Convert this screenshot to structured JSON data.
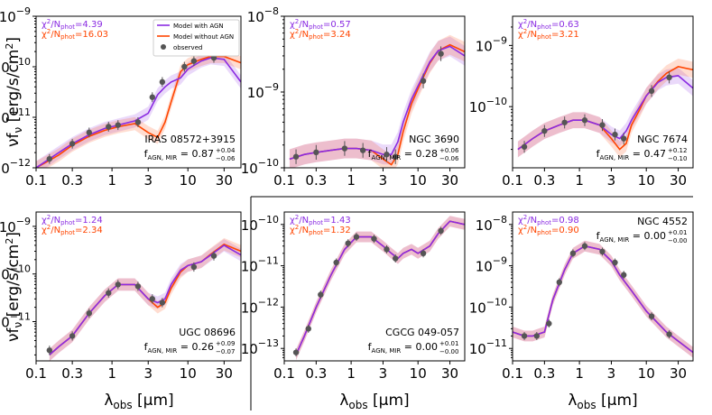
{
  "figure": {
    "ylabel_shared": "νf_ν [erg/s/cm²]",
    "xlabel_shared": "λ_obs [μm]"
  },
  "colors": {
    "agn": "#8a2be2",
    "noagn": "#ff4500",
    "observed": "#555555",
    "axis": "#000000"
  },
  "legend": {
    "entries": [
      {
        "label": "Model with AGN",
        "kind": "line",
        "color": "#8a2be2"
      },
      {
        "label": "Model without AGN",
        "kind": "line",
        "color": "#ff4500"
      },
      {
        "label": "observed",
        "kind": "marker",
        "color": "#555555"
      }
    ]
  },
  "chart_data": [
    {
      "type": "line",
      "name": "IRAS 08572+3915",
      "chi_agn": "χ²/N_phot=4.39",
      "chi_noagn": "χ²/N_phot=16.03",
      "fagn": "f_AGN,MIR = 0.87 +0.04 −0.06",
      "xscale": "log",
      "yscale": "log",
      "xlim": [
        0.1,
        50
      ],
      "ylim": [
        1e-12,
        1e-09
      ],
      "xticks": [
        "0.1",
        "0.3",
        "1",
        "3",
        "10",
        "30"
      ],
      "yticks": [
        "10^-12",
        "10^-11",
        "10^-10",
        "10^-9"
      ],
      "x": [
        0.1,
        0.15,
        0.2,
        0.3,
        0.5,
        0.8,
        1.2,
        2,
        3,
        4,
        5,
        6,
        8,
        10,
        15,
        20,
        30,
        50
      ],
      "series": [
        {
          "name": "Model with AGN",
          "values": [
            1e-12,
            1.5e-12,
            2e-12,
            3e-12,
            4.5e-12,
            6e-12,
            7e-12,
            8.5e-12,
            1.2e-11,
            2.8e-11,
            4e-11,
            5e-11,
            6e-11,
            9e-11,
            1.3e-10,
            1.5e-10,
            1.4e-10,
            5e-11
          ]
        },
        {
          "name": "Model without AGN",
          "values": [
            1e-12,
            1.4e-12,
            1.8e-12,
            2.8e-12,
            4.2e-12,
            5.5e-12,
            6.5e-12,
            7.5e-12,
            5e-12,
            4e-12,
            8e-12,
            2e-11,
            8e-11,
            1.1e-10,
            1.4e-10,
            1.6e-10,
            1.6e-10,
            1.2e-10
          ]
        }
      ],
      "observed": {
        "x": [
          0.15,
          0.3,
          0.5,
          0.9,
          1.2,
          2.2,
          3.4,
          4.6,
          9,
          12,
          22
        ],
        "y": [
          1.5e-12,
          3e-12,
          5e-12,
          6.5e-12,
          7e-12,
          8e-12,
          2.5e-11,
          5e-11,
          1e-10,
          1.3e-10,
          1.5e-10
        ]
      }
    },
    {
      "type": "line",
      "name": "NGC 3690",
      "chi_agn": "χ²/N_phot=0.57",
      "chi_noagn": "χ²/N_phot=3.24",
      "fagn": "f_AGN,MIR = 0.28 +0.06 −0.06",
      "xscale": "log",
      "yscale": "log",
      "xlim": [
        0.1,
        50
      ],
      "ylim": [
        1e-10,
        1e-08
      ],
      "xticks": [
        "0.1",
        "0.3",
        "1",
        "3",
        "10",
        "30"
      ],
      "yticks": [
        "10^-10",
        "10^-9",
        "10^-8"
      ],
      "x": [
        0.12,
        0.2,
        0.3,
        0.5,
        0.8,
        1.2,
        2,
        3,
        4,
        5,
        6,
        8,
        10,
        15,
        20,
        30,
        50
      ],
      "series": [
        {
          "name": "Model with AGN",
          "values": [
            1.3e-10,
            1.5e-10,
            1.6e-10,
            1.7e-10,
            1.8e-10,
            1.8e-10,
            1.7e-10,
            1.5e-10,
            1.5e-10,
            2.2e-10,
            4e-10,
            8e-10,
            1.2e-09,
            2.5e-09,
            3.5e-09,
            4e-09,
            3e-09
          ]
        },
        {
          "name": "Model without AGN",
          "values": [
            1.3e-10,
            1.5e-10,
            1.6e-10,
            1.7e-10,
            1.8e-10,
            1.8e-10,
            1.7e-10,
            1.3e-10,
            1.1e-10,
            1.5e-10,
            3e-10,
            7e-10,
            1.1e-09,
            2.4e-09,
            3.5e-09,
            4.2e-09,
            3.4e-09
          ]
        }
      ],
      "observed": {
        "x": [
          0.15,
          0.3,
          0.8,
          1.5,
          3.4,
          4.6,
          12,
          22
        ],
        "y": [
          1.4e-10,
          1.6e-10,
          1.8e-10,
          1.7e-10,
          1.5e-10,
          1.4e-10,
          1.4e-09,
          3.2e-09
        ]
      }
    },
    {
      "type": "line",
      "name": "NGC 7674",
      "chi_agn": "χ²/N_phot=0.63",
      "chi_noagn": "χ²/N_phot=3.21",
      "fagn": "f_AGN,MIR = 0.47 +0.12 −0.10",
      "xscale": "log",
      "yscale": "log",
      "xlim": [
        0.1,
        50
      ],
      "ylim": [
        1e-11,
        3e-09
      ],
      "xticks": [
        "0.1",
        "0.3",
        "1",
        "3",
        "10",
        "30"
      ],
      "yticks": [
        "10^-10",
        "10^-9"
      ],
      "x": [
        0.12,
        0.2,
        0.3,
        0.5,
        0.8,
        1.2,
        2,
        3,
        4,
        5,
        6,
        8,
        10,
        15,
        20,
        30,
        50
      ],
      "series": [
        {
          "name": "Model with AGN",
          "values": [
            2e-11,
            3e-11,
            4e-11,
            5e-11,
            6e-11,
            6e-11,
            5e-11,
            3.5e-11,
            3e-11,
            4e-11,
            6e-11,
            1e-10,
            1.5e-10,
            2.5e-10,
            3e-10,
            3.2e-10,
            2e-10
          ]
        },
        {
          "name": "Model without AGN",
          "values": [
            2e-11,
            3e-11,
            4e-11,
            5e-11,
            6e-11,
            6e-11,
            5e-11,
            3e-11,
            2e-11,
            2.5e-11,
            5e-11,
            9e-11,
            1.5e-10,
            2.6e-10,
            3.5e-10,
            4.5e-10,
            4e-10
          ]
        }
      ],
      "observed": {
        "x": [
          0.15,
          0.3,
          0.6,
          1.2,
          2.2,
          3.4,
          4.6,
          12,
          22
        ],
        "y": [
          2.2e-11,
          4e-11,
          5.5e-11,
          6e-11,
          5e-11,
          3.5e-11,
          3e-11,
          1.8e-10,
          3e-10
        ]
      }
    },
    {
      "type": "line",
      "name": "UGC 08696",
      "chi_agn": "χ²/N_phot=1.24",
      "chi_noagn": "χ²/N_phot=2.34",
      "fagn": "f_AGN,MIR = 0.26 +0.09 −0.07",
      "xscale": "log",
      "yscale": "log",
      "xlim": [
        0.1,
        50
      ],
      "ylim": [
        1.5e-12,
        2e-09
      ],
      "xticks": [
        "0.1",
        "0.3",
        "1",
        "3",
        "10",
        "30"
      ],
      "yticks": [
        "10^-11",
        "10^-10",
        "10^-9"
      ],
      "x": [
        0.15,
        0.2,
        0.3,
        0.5,
        0.8,
        1.2,
        2,
        3,
        4,
        5,
        6,
        8,
        10,
        15,
        20,
        30,
        50
      ],
      "series": [
        {
          "name": "Model with AGN",
          "values": [
            2e-12,
            3e-12,
            5e-12,
            1.5e-11,
            3.5e-11,
            6e-11,
            6e-11,
            3e-11,
            2.5e-11,
            3e-11,
            6e-11,
            1.2e-10,
            1.5e-10,
            1.8e-10,
            2.5e-10,
            4e-10,
            2.5e-10
          ]
        },
        {
          "name": "Model without AGN",
          "values": [
            2e-12,
            3e-12,
            5e-12,
            1.5e-11,
            3.5e-11,
            6e-11,
            6e-11,
            3e-11,
            2e-11,
            2.5e-11,
            5e-11,
            1.1e-10,
            1.5e-10,
            1.8e-10,
            2.6e-10,
            4.2e-10,
            3e-10
          ]
        }
      ],
      "observed": {
        "x": [
          0.15,
          0.3,
          0.5,
          0.9,
          1.2,
          2.2,
          3.4,
          4.6,
          12,
          22
        ],
        "y": [
          2.5e-12,
          5e-12,
          1.5e-11,
          4e-11,
          6e-11,
          5.5e-11,
          3e-11,
          2.5e-11,
          1.4e-10,
          2.4e-10
        ]
      }
    },
    {
      "type": "line",
      "name": "CGCG 049-057",
      "chi_agn": "χ²/N_phot=1.43",
      "chi_noagn": "χ²/N_phot=1.32",
      "fagn": "f_AGN,MIR = 0.00 +0.01 −0.00",
      "xscale": "log",
      "yscale": "log",
      "xlim": [
        0.1,
        50
      ],
      "ylim": [
        5e-14,
        2e-10
      ],
      "xticks": [
        "0.1",
        "0.3",
        "1",
        "3",
        "10",
        "30"
      ],
      "yticks": [
        "10^-13",
        "10^-12",
        "10^-11",
        "10^-10"
      ],
      "x": [
        0.15,
        0.2,
        0.3,
        0.5,
        0.8,
        1.2,
        2,
        3,
        4,
        5,
        6,
        8,
        10,
        15,
        20,
        30,
        50
      ],
      "series": [
        {
          "name": "Model with AGN",
          "values": [
            7e-14,
            2e-13,
            1e-12,
            6e-12,
            2.5e-11,
            5e-11,
            5e-11,
            3e-11,
            2e-11,
            1.5e-11,
            2e-11,
            2.5e-11,
            2e-11,
            3e-11,
            6e-11,
            1.2e-10,
            1e-10
          ]
        },
        {
          "name": "Model without AGN",
          "values": [
            7e-14,
            2e-13,
            1e-12,
            6e-12,
            2.5e-11,
            5e-11,
            5e-11,
            3e-11,
            2e-11,
            1.5e-11,
            2e-11,
            2.5e-11,
            2e-11,
            3e-11,
            6e-11,
            1.2e-10,
            1e-10
          ]
        }
      ],
      "observed": {
        "x": [
          0.15,
          0.23,
          0.35,
          0.6,
          0.9,
          1.2,
          2.2,
          3.4,
          4.6,
          12,
          22
        ],
        "y": [
          8e-14,
          3e-13,
          2e-12,
          1.2e-11,
          3.5e-11,
          5e-11,
          4.5e-11,
          2.5e-11,
          1.5e-11,
          2e-11,
          7e-11
        ]
      }
    },
    {
      "type": "line",
      "name": "NGC 4552",
      "chi_agn": "χ²/N_phot=0.98",
      "chi_noagn": "χ²/N_phot=0.90",
      "fagn": "f_AGN,MIR = 0.00 +0.01 −0.00",
      "xscale": "log",
      "yscale": "log",
      "xlim": [
        0.1,
        50
      ],
      "ylim": [
        5e-12,
        2e-08
      ],
      "xticks": [
        "0.1",
        "0.3",
        "1",
        "3",
        "10",
        "30"
      ],
      "yticks": [
        "10^-11",
        "10^-10",
        "10^-9",
        "10^-8"
      ],
      "x": [
        0.1,
        0.15,
        0.2,
        0.3,
        0.4,
        0.6,
        0.8,
        1.2,
        2,
        3,
        4,
        6,
        10,
        20,
        30,
        50
      ],
      "series": [
        {
          "name": "Model with AGN",
          "values": [
            2.5e-11,
            2e-11,
            2e-11,
            2.5e-11,
            1.5e-10,
            8e-10,
            2e-09,
            3e-09,
            2.5e-09,
            1.3e-09,
            6e-10,
            2.5e-10,
            8e-11,
            2.5e-11,
            1.5e-11,
            8e-12
          ]
        },
        {
          "name": "Model without AGN",
          "values": [
            2.5e-11,
            2e-11,
            2e-11,
            2.5e-11,
            1.5e-10,
            8e-10,
            2e-09,
            3e-09,
            2.5e-09,
            1.3e-09,
            6e-10,
            2.5e-10,
            8e-11,
            2.5e-11,
            1.5e-11,
            8e-12
          ]
        }
      ],
      "observed": {
        "x": [
          0.15,
          0.23,
          0.35,
          0.5,
          0.8,
          1.2,
          2.2,
          3.4,
          4.6,
          12,
          22
        ],
        "y": [
          2e-11,
          2e-11,
          4e-11,
          4e-10,
          2e-09,
          3e-09,
          2.2e-09,
          1.2e-09,
          6e-10,
          6e-11,
          2.2e-11
        ]
      }
    }
  ]
}
